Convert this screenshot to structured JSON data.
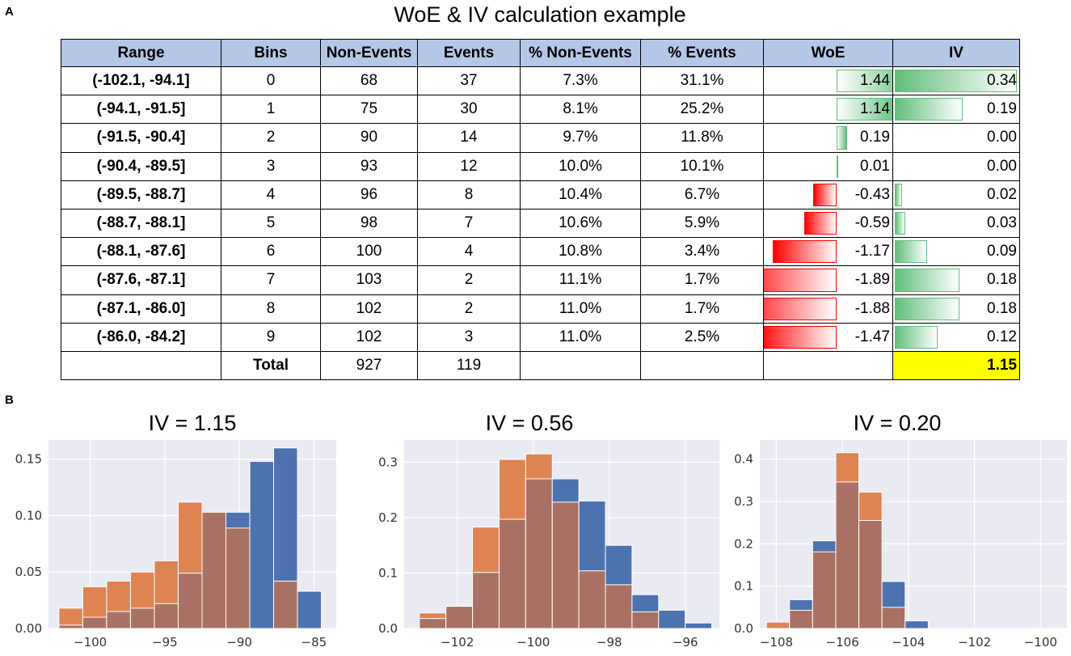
{
  "panel_a_label": "A",
  "panel_b_label": "B",
  "table": {
    "title": "WoE & IV calculation example",
    "headers": [
      "Range",
      "Bins",
      "Non-Events",
      "Events",
      "% Non-Events",
      "% Events",
      "WoE",
      "IV"
    ],
    "rows": [
      {
        "range": "(-102.1, -94.1]",
        "bin": "0",
        "non_events": "68",
        "events": "37",
        "pct_non_events": "7.3%",
        "pct_events": "31.1%",
        "woe": "1.44",
        "iv": "0.34"
      },
      {
        "range": "(-94.1, -91.5]",
        "bin": "1",
        "non_events": "75",
        "events": "30",
        "pct_non_events": "8.1%",
        "pct_events": "25.2%",
        "woe": "1.14",
        "iv": "0.19"
      },
      {
        "range": "(-91.5, -90.4]",
        "bin": "2",
        "non_events": "90",
        "events": "14",
        "pct_non_events": "9.7%",
        "pct_events": "11.8%",
        "woe": "0.19",
        "iv": "0.00"
      },
      {
        "range": "(-90.4, -89.5]",
        "bin": "3",
        "non_events": "93",
        "events": "12",
        "pct_non_events": "10.0%",
        "pct_events": "10.1%",
        "woe": "0.01",
        "iv": "0.00"
      },
      {
        "range": "(-89.5, -88.7]",
        "bin": "4",
        "non_events": "96",
        "events": "8",
        "pct_non_events": "10.4%",
        "pct_events": "6.7%",
        "woe": "-0.43",
        "iv": "0.02"
      },
      {
        "range": "(-88.7, -88.1]",
        "bin": "5",
        "non_events": "98",
        "events": "7",
        "pct_non_events": "10.6%",
        "pct_events": "5.9%",
        "woe": "-0.59",
        "iv": "0.03"
      },
      {
        "range": "(-88.1, -87.6]",
        "bin": "6",
        "non_events": "100",
        "events": "4",
        "pct_non_events": "10.8%",
        "pct_events": "3.4%",
        "woe": "-1.17",
        "iv": "0.09"
      },
      {
        "range": "(-87.6, -87.1]",
        "bin": "7",
        "non_events": "103",
        "events": "2",
        "pct_non_events": "11.1%",
        "pct_events": "1.7%",
        "woe": "-1.89",
        "iv": "0.18"
      },
      {
        "range": "(-87.1, -86.0]",
        "bin": "8",
        "non_events": "102",
        "events": "2",
        "pct_non_events": "11.0%",
        "pct_events": "1.7%",
        "woe": "-1.88",
        "iv": "0.18"
      },
      {
        "range": "(-86.0, -84.2]",
        "bin": "9",
        "non_events": "102",
        "events": "3",
        "pct_non_events": "11.0%",
        "pct_events": "2.5%",
        "woe": "-1.47",
        "iv": "0.12"
      }
    ],
    "total": {
      "label": "Total",
      "non_events": "927",
      "events": "119",
      "iv": "1.15"
    },
    "colors": {
      "header_bg": "#b4c7e7",
      "positive_bar": "#63be7b",
      "negative_bar": "#ff0000",
      "total_highlight": "#ffff00"
    }
  },
  "chart_data": [
    {
      "type": "bar",
      "title": "IV = 1.15",
      "xlim": [
        -102.8,
        -83.5
      ],
      "ylim": [
        0,
        0.167
      ],
      "xticks": [
        -100,
        -95,
        -90,
        -85
      ],
      "xtick_labels": [
        "−100",
        "−95",
        "−90",
        "−85"
      ],
      "yticks": [
        0.0,
        0.05,
        0.1,
        0.15
      ],
      "ytick_labels": [
        "0.00",
        "0.05",
        "0.10",
        "0.15"
      ],
      "grid": true,
      "background": "#eaeaf2",
      "bin_edges": [
        -102.1,
        -100.5,
        -98.9,
        -97.3,
        -95.7,
        -94.1,
        -92.5,
        -90.9,
        -89.3,
        -87.7,
        -86.1,
        -84.5
      ],
      "series": [
        {
          "name": "non-events",
          "color": "#4c72b0",
          "values": [
            0.0,
            0.0,
            0.0,
            0.0,
            0.0,
            0.0,
            0.0,
            0.103,
            0.148,
            0.16,
            0.033
          ]
        },
        {
          "name": "events",
          "color": "#dd8452",
          "values": [
            0.018,
            0.037,
            0.042,
            0.05,
            0.06,
            0.112,
            0.0,
            0.0,
            0.0,
            0.0,
            0.0
          ]
        }
      ],
      "overlap": [
        0.003,
        0.01,
        0.015,
        0.018,
        0.022,
        0.049,
        0.103,
        0.089,
        0.0,
        0.042,
        0.0
      ]
    },
    {
      "type": "bar",
      "title": "IV = 0.56",
      "xlim": [
        -103.4,
        -95.1
      ],
      "ylim": [
        0,
        0.34
      ],
      "xticks": [
        -102,
        -100,
        -98,
        -96
      ],
      "xtick_labels": [
        "−102",
        "−100",
        "−98",
        "−96"
      ],
      "yticks": [
        0.0,
        0.1,
        0.2,
        0.3
      ],
      "ytick_labels": [
        "0.0",
        "0.1",
        "0.2",
        "0.3"
      ],
      "grid": true,
      "background": "#eaeaf2",
      "bin_edges": [
        -103.0,
        -102.3,
        -101.6,
        -100.9,
        -100.2,
        -99.5,
        -98.8,
        -98.1,
        -97.4,
        -96.7,
        -96.0,
        -95.3
      ],
      "series": [
        {
          "name": "non-events",
          "color": "#4c72b0",
          "values": [
            0.0,
            0.0,
            0.0,
            0.0,
            0.0,
            0.27,
            0.23,
            0.15,
            0.061,
            0.033,
            0.01
          ]
        },
        {
          "name": "events",
          "color": "#dd8452",
          "values": [
            0.028,
            0.04,
            0.183,
            0.305,
            0.315,
            0.0,
            0.0,
            0.0,
            0.0,
            0.0,
            0.0
          ]
        }
      ],
      "overlap": [
        0.018,
        0.04,
        0.101,
        0.197,
        0.27,
        0.228,
        0.104,
        0.079,
        0.03,
        0.0,
        0.0
      ]
    },
    {
      "type": "bar",
      "title": "IV = 0.20",
      "xlim": [
        -108.5,
        -99.2
      ],
      "ylim": [
        0,
        0.445
      ],
      "xticks": [
        -108,
        -106,
        -104,
        -102,
        -100
      ],
      "xtick_labels": [
        "−108",
        "−106",
        "−104",
        "−102",
        "−100"
      ],
      "yticks": [
        0.0,
        0.1,
        0.2,
        0.3,
        0.4
      ],
      "ytick_labels": [
        "0.0",
        "0.1",
        "0.2",
        "0.3",
        "0.4"
      ],
      "grid": true,
      "background": "#eaeaf2",
      "bin_edges": [
        -108.3,
        -107.6,
        -106.9,
        -106.2,
        -105.5,
        -104.8,
        -104.1,
        -103.4,
        -102.7,
        -102.0,
        -101.3,
        -100.6
      ],
      "series": [
        {
          "name": "non-events",
          "color": "#4c72b0",
          "values": [
            0.0,
            0.068,
            0.207,
            0.0,
            0.0,
            0.111,
            0.018,
            0.0,
            0.0,
            0.0,
            0.0
          ]
        },
        {
          "name": "events",
          "color": "#dd8452",
          "values": [
            0.015,
            0.0,
            0.0,
            0.415,
            0.322,
            0.0,
            0.0,
            0.0,
            0.0,
            0.0,
            0.0
          ]
        }
      ],
      "overlap": [
        0.0,
        0.043,
        0.181,
        0.346,
        0.255,
        0.05,
        0.0,
        0.0,
        0.0,
        0.0,
        0.0
      ]
    }
  ]
}
